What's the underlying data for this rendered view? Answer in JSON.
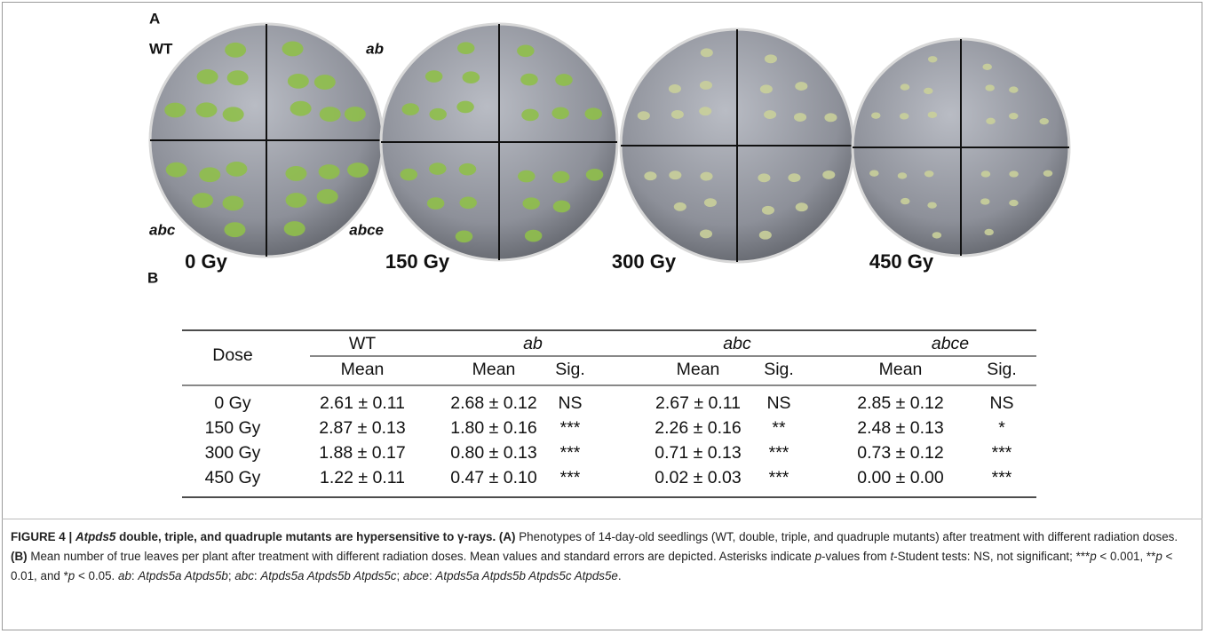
{
  "panel_a": {
    "label": "A",
    "plate_labels": [
      "WT",
      "ab",
      "abc",
      "abce"
    ],
    "doses": [
      "0 Gy",
      "150 Gy",
      "300 Gy",
      "450 Gy"
    ]
  },
  "panel_b": {
    "label": "B"
  },
  "table": {
    "dose_header": "Dose",
    "groups": [
      "WT",
      "ab",
      "abc",
      "abce"
    ],
    "subheaders": [
      "Mean",
      "Mean",
      "Sig.",
      "Mean",
      "Sig.",
      "Mean",
      "Sig."
    ],
    "rows": [
      [
        "0 Gy",
        "2.61 ± 0.11",
        "2.68 ± 0.12",
        "NS",
        "2.67 ± 0.11",
        "NS",
        "2.85 ± 0.12",
        "NS"
      ],
      [
        "150 Gy",
        "2.87 ± 0.13",
        "1.80 ± 0.16",
        "***",
        "2.26 ± 0.16",
        "**",
        "2.48 ± 0.13",
        "*"
      ],
      [
        "300 Gy",
        "1.88 ± 0.17",
        "0.80 ± 0.13",
        "***",
        "0.71 ± 0.13",
        "***",
        "0.73 ± 0.12",
        "***"
      ],
      [
        "450 Gy",
        "1.22 ± 0.11",
        "0.47 ± 0.10",
        "***",
        "0.02 ± 0.03",
        "***",
        "0.00 ± 0.00",
        "***"
      ]
    ]
  },
  "caption": {
    "runs": [
      "FIGURE 4 | ",
      "Atpds5",
      " double, triple, and quadruple mutants are hypersensitive to γ-rays. (A)",
      " Phenotypes of 14-day-old seedlings (WT, double, triple, and quadruple mutants) after treatment with different radiation doses. ",
      "(B)",
      " Mean number of true leaves per plant after treatment with different radiation doses. Mean values and standard errors are depicted. Asterisks indicate ",
      "p",
      "-values from ",
      "t",
      "-Student tests: NS, not significant; ***",
      "p",
      " < 0.001, **",
      "p",
      " < 0.01, and *",
      "p",
      " < 0.05. ",
      "ab",
      ": ",
      "Atpds5a Atpds5b",
      "; ",
      "abc",
      ": ",
      "Atpds5a Atpds5b Atpds5c",
      "; ",
      "abce",
      ": ",
      "Atpds5a Atpds5b Atpds5c Atpds5e",
      "."
    ]
  }
}
